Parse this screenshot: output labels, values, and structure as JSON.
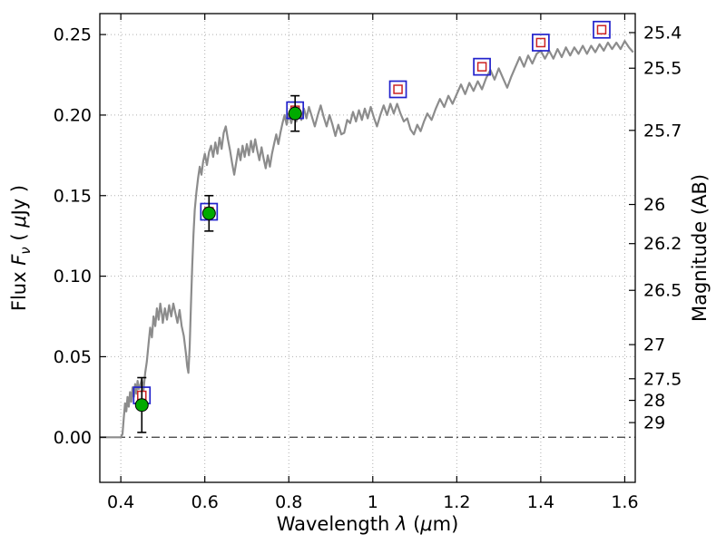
{
  "figure": {
    "background": "#ffffff"
  },
  "chart_data": {
    "type": "line+scatter",
    "title": "",
    "xlabel": "Wavelength λ (μm)",
    "ylabel": "Flux Fν ( μJy )",
    "ylabel_right": "Magnitude (AB)",
    "xlabel_parts": [
      {
        "t": "Wavelength  "
      },
      {
        "t": "λ",
        "i": true
      },
      {
        "t": " ("
      },
      {
        "t": "μ",
        "i": true
      },
      {
        "t": "m)"
      }
    ],
    "ylabel_parts": [
      {
        "t": "Flux  "
      },
      {
        "t": "F",
        "i": true
      },
      {
        "t": "ν",
        "i": true,
        "sub": true
      },
      {
        "t": "  ( "
      },
      {
        "t": "μ",
        "i": true
      },
      {
        "t": "Jy )"
      }
    ],
    "ylabel_right_parts": [
      {
        "t": "Magnitude (AB)"
      }
    ],
    "xlim": [
      0.35,
      1.625
    ],
    "ylim": [
      -0.028,
      0.263
    ],
    "grid": true,
    "x_ticks": [
      {
        "v": 0.4,
        "label": "0.4"
      },
      {
        "v": 0.6,
        "label": "0.6"
      },
      {
        "v": 0.8,
        "label": "0.8"
      },
      {
        "v": 1.0,
        "label": "1"
      },
      {
        "v": 1.2,
        "label": "1.2"
      },
      {
        "v": 1.4,
        "label": "1.4"
      },
      {
        "v": 1.6,
        "label": "1.6"
      }
    ],
    "y_ticks_left": [
      {
        "v": 0.0,
        "label": "0.00"
      },
      {
        "v": 0.05,
        "label": "0.05"
      },
      {
        "v": 0.1,
        "label": "0.10"
      },
      {
        "v": 0.15,
        "label": "0.15"
      },
      {
        "v": 0.2,
        "label": "0.20"
      },
      {
        "v": 0.25,
        "label": "0.25"
      }
    ],
    "y_ticks_right": [
      {
        "label": "25.4",
        "flux": 0.2512
      },
      {
        "label": "25.5",
        "flux": 0.2291
      },
      {
        "label": "25.7",
        "flux": 0.1905
      },
      {
        "label": "26",
        "flux": 0.1445
      },
      {
        "label": "26.2",
        "flux": 0.1202
      },
      {
        "label": "26.5",
        "flux": 0.0912
      },
      {
        "label": "27",
        "flux": 0.0575
      },
      {
        "label": "27.5",
        "flux": 0.0363
      },
      {
        "label": "28",
        "flux": 0.0229
      },
      {
        "label": "29",
        "flux": 0.0091
      }
    ],
    "zero_line": {
      "y": 0.0,
      "color": "#3a3a3a"
    },
    "style": {
      "grid_color": "#b0b0b0",
      "frame_color": "#000000",
      "tick_color": "#000000"
    },
    "spectrum": {
      "name": "model-spectrum",
      "color": "#8c8c8c",
      "width": 2.2,
      "points": [
        [
          0.35,
          0.0
        ],
        [
          0.36,
          0.0
        ],
        [
          0.37,
          0.0
        ],
        [
          0.38,
          0.0
        ],
        [
          0.39,
          0.0
        ],
        [
          0.4,
          0.0
        ],
        [
          0.404,
          0.002
        ],
        [
          0.407,
          0.012
        ],
        [
          0.41,
          0.021
        ],
        [
          0.413,
          0.016
        ],
        [
          0.416,
          0.025
        ],
        [
          0.419,
          0.019
        ],
        [
          0.422,
          0.028
        ],
        [
          0.425,
          0.022
        ],
        [
          0.428,
          0.031
        ],
        [
          0.431,
          0.025
        ],
        [
          0.434,
          0.033
        ],
        [
          0.437,
          0.027
        ],
        [
          0.44,
          0.035
        ],
        [
          0.443,
          0.03
        ],
        [
          0.446,
          0.032
        ],
        [
          0.45,
          0.036
        ],
        [
          0.454,
          0.029
        ],
        [
          0.458,
          0.04
        ],
        [
          0.462,
          0.047
        ],
        [
          0.466,
          0.058
        ],
        [
          0.47,
          0.068
        ],
        [
          0.474,
          0.062
        ],
        [
          0.478,
          0.075
        ],
        [
          0.482,
          0.069
        ],
        [
          0.486,
          0.08
        ],
        [
          0.49,
          0.073
        ],
        [
          0.494,
          0.083
        ],
        [
          0.498,
          0.076
        ],
        [
          0.5,
          0.071
        ],
        [
          0.505,
          0.08
        ],
        [
          0.51,
          0.073
        ],
        [
          0.515,
          0.082
        ],
        [
          0.52,
          0.075
        ],
        [
          0.525,
          0.083
        ],
        [
          0.53,
          0.077
        ],
        [
          0.535,
          0.071
        ],
        [
          0.54,
          0.079
        ],
        [
          0.545,
          0.069
        ],
        [
          0.55,
          0.063
        ],
        [
          0.555,
          0.052
        ],
        [
          0.558,
          0.044
        ],
        [
          0.561,
          0.04
        ],
        [
          0.564,
          0.056
        ],
        [
          0.567,
          0.082
        ],
        [
          0.57,
          0.106
        ],
        [
          0.573,
          0.126
        ],
        [
          0.576,
          0.141
        ],
        [
          0.58,
          0.152
        ],
        [
          0.584,
          0.161
        ],
        [
          0.588,
          0.168
        ],
        [
          0.592,
          0.163
        ],
        [
          0.596,
          0.171
        ],
        [
          0.6,
          0.176
        ],
        [
          0.605,
          0.169
        ],
        [
          0.61,
          0.177
        ],
        [
          0.615,
          0.181
        ],
        [
          0.62,
          0.174
        ],
        [
          0.625,
          0.183
        ],
        [
          0.63,
          0.176
        ],
        [
          0.635,
          0.186
        ],
        [
          0.64,
          0.179
        ],
        [
          0.645,
          0.189
        ],
        [
          0.65,
          0.193
        ],
        [
          0.655,
          0.185
        ],
        [
          0.66,
          0.178
        ],
        [
          0.665,
          0.17
        ],
        [
          0.67,
          0.163
        ],
        [
          0.675,
          0.171
        ],
        [
          0.68,
          0.179
        ],
        [
          0.685,
          0.172
        ],
        [
          0.69,
          0.181
        ],
        [
          0.695,
          0.174
        ],
        [
          0.7,
          0.182
        ],
        [
          0.705,
          0.175
        ],
        [
          0.71,
          0.184
        ],
        [
          0.715,
          0.177
        ],
        [
          0.72,
          0.185
        ],
        [
          0.725,
          0.178
        ],
        [
          0.73,
          0.172
        ],
        [
          0.735,
          0.18
        ],
        [
          0.74,
          0.173
        ],
        [
          0.745,
          0.167
        ],
        [
          0.75,
          0.175
        ],
        [
          0.755,
          0.168
        ],
        [
          0.76,
          0.176
        ],
        [
          0.765,
          0.182
        ],
        [
          0.77,
          0.188
        ],
        [
          0.775,
          0.182
        ],
        [
          0.78,
          0.189
        ],
        [
          0.785,
          0.195
        ],
        [
          0.79,
          0.2
        ],
        [
          0.795,
          0.194
        ],
        [
          0.8,
          0.201
        ],
        [
          0.806,
          0.195
        ],
        [
          0.812,
          0.202
        ],
        [
          0.818,
          0.196
        ],
        [
          0.824,
          0.203
        ],
        [
          0.83,
          0.197
        ],
        [
          0.836,
          0.204
        ],
        [
          0.842,
          0.198
        ],
        [
          0.848,
          0.205
        ],
        [
          0.855,
          0.199
        ],
        [
          0.862,
          0.193
        ],
        [
          0.869,
          0.2
        ],
        [
          0.876,
          0.206
        ],
        [
          0.883,
          0.199
        ],
        [
          0.89,
          0.193
        ],
        [
          0.897,
          0.2
        ],
        [
          0.904,
          0.194
        ],
        [
          0.911,
          0.187
        ],
        [
          0.918,
          0.194
        ],
        [
          0.925,
          0.188
        ],
        [
          0.932,
          0.189
        ],
        [
          0.939,
          0.197
        ],
        [
          0.946,
          0.195
        ],
        [
          0.953,
          0.202
        ],
        [
          0.96,
          0.196
        ],
        [
          0.967,
          0.203
        ],
        [
          0.974,
          0.197
        ],
        [
          0.981,
          0.204
        ],
        [
          0.988,
          0.198
        ],
        [
          0.995,
          0.205
        ],
        [
          1.002,
          0.199
        ],
        [
          1.01,
          0.193
        ],
        [
          1.018,
          0.2
        ],
        [
          1.026,
          0.206
        ],
        [
          1.034,
          0.2
        ],
        [
          1.042,
          0.207
        ],
        [
          1.05,
          0.201
        ],
        [
          1.058,
          0.207
        ],
        [
          1.066,
          0.201
        ],
        [
          1.074,
          0.196
        ],
        [
          1.082,
          0.198
        ],
        [
          1.09,
          0.191
        ],
        [
          1.098,
          0.188
        ],
        [
          1.106,
          0.194
        ],
        [
          1.114,
          0.19
        ],
        [
          1.122,
          0.196
        ],
        [
          1.13,
          0.201
        ],
        [
          1.14,
          0.197
        ],
        [
          1.15,
          0.204
        ],
        [
          1.16,
          0.21
        ],
        [
          1.17,
          0.205
        ],
        [
          1.18,
          0.212
        ],
        [
          1.19,
          0.207
        ],
        [
          1.2,
          0.213
        ],
        [
          1.21,
          0.219
        ],
        [
          1.22,
          0.213
        ],
        [
          1.23,
          0.22
        ],
        [
          1.24,
          0.215
        ],
        [
          1.25,
          0.221
        ],
        [
          1.26,
          0.216
        ],
        [
          1.27,
          0.223
        ],
        [
          1.28,
          0.228
        ],
        [
          1.29,
          0.222
        ],
        [
          1.3,
          0.229
        ],
        [
          1.31,
          0.223
        ],
        [
          1.32,
          0.217
        ],
        [
          1.33,
          0.224
        ],
        [
          1.34,
          0.23
        ],
        [
          1.35,
          0.236
        ],
        [
          1.36,
          0.23
        ],
        [
          1.37,
          0.237
        ],
        [
          1.38,
          0.232
        ],
        [
          1.39,
          0.238
        ],
        [
          1.4,
          0.24
        ],
        [
          1.41,
          0.235
        ],
        [
          1.42,
          0.24
        ],
        [
          1.43,
          0.235
        ],
        [
          1.44,
          0.241
        ],
        [
          1.45,
          0.236
        ],
        [
          1.46,
          0.242
        ],
        [
          1.47,
          0.237
        ],
        [
          1.48,
          0.242
        ],
        [
          1.49,
          0.238
        ],
        [
          1.5,
          0.243
        ],
        [
          1.51,
          0.238
        ],
        [
          1.52,
          0.243
        ],
        [
          1.53,
          0.239
        ],
        [
          1.54,
          0.244
        ],
        [
          1.55,
          0.24
        ],
        [
          1.56,
          0.245
        ],
        [
          1.57,
          0.241
        ],
        [
          1.58,
          0.245
        ],
        [
          1.59,
          0.241
        ],
        [
          1.6,
          0.246
        ],
        [
          1.61,
          0.242
        ],
        [
          1.62,
          0.239
        ]
      ]
    },
    "observed": {
      "name": "observed-photometry",
      "marker": "circle",
      "fill": "#00aa00",
      "edge": "#000000",
      "radius": 7,
      "errorbar_color": "#000000",
      "points": [
        {
          "x": 0.45,
          "y": 0.02,
          "yerr": 0.017
        },
        {
          "x": 0.61,
          "y": 0.139,
          "yerr": 0.011
        },
        {
          "x": 0.815,
          "y": 0.201,
          "yerr": 0.011
        }
      ]
    },
    "model_phot": {
      "name": "model-photometry",
      "marker": "square",
      "outer_color": "#2222cc",
      "inner_color": "#cc2222",
      "outer_size": 18,
      "inner_size": 9,
      "points": [
        {
          "x": 0.45,
          "y": 0.026
        },
        {
          "x": 0.61,
          "y": 0.14
        },
        {
          "x": 0.815,
          "y": 0.203
        },
        {
          "x": 1.06,
          "y": 0.216
        },
        {
          "x": 1.26,
          "y": 0.23
        },
        {
          "x": 1.4,
          "y": 0.245
        },
        {
          "x": 1.545,
          "y": 0.253
        }
      ]
    }
  }
}
